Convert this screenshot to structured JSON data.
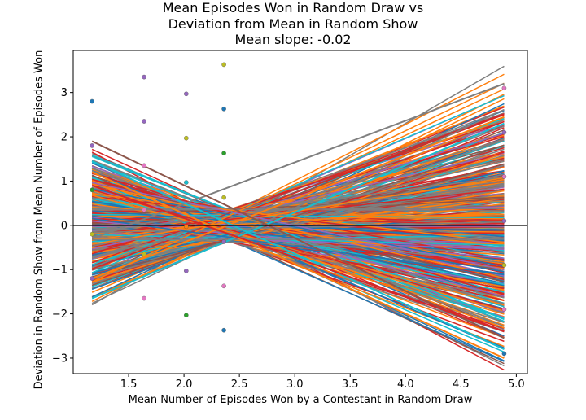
{
  "chart_data": {
    "type": "line",
    "title_lines": [
      "Mean Episodes Won in Random Draw vs",
      "Deviation from Mean in Random Show",
      "Mean slope: -0.02"
    ],
    "xlabel": "Mean Number of Episodes Won by a Contestant in Random Draw",
    "ylabel": "Deviation in Random Show from Mean Number of Episodes Won",
    "xlim": [
      1.0,
      5.1
    ],
    "ylim": [
      -3.35,
      3.95
    ],
    "xticks": [
      1.5,
      2.0,
      2.5,
      3.0,
      3.5,
      4.0,
      4.5,
      5.0
    ],
    "xtick_labels": [
      "1.5",
      "2.0",
      "2.5",
      "3.0",
      "3.5",
      "4.0",
      "4.5",
      "5.0"
    ],
    "yticks": [
      -3,
      -2,
      -1,
      0,
      1,
      2,
      3
    ],
    "ytick_labels": [
      "−3",
      "−2",
      "−1",
      "0",
      "1",
      "2",
      "3"
    ],
    "reference_line_y": 0,
    "mean_slope": -0.02,
    "group_x": [
      1.17,
      1.64,
      2.02,
      2.36,
      4.89
    ],
    "pivot_x": 2.4,
    "palette": [
      "#1f77b4",
      "#ff7f0e",
      "#2ca02c",
      "#d62728",
      "#9467bd",
      "#8c564b",
      "#e377c2",
      "#7f7f7f",
      "#bcbd22",
      "#17becf"
    ],
    "line_count": 520,
    "highlighted_lines": [
      {
        "x": [
          1.17,
          4.89
        ],
        "y": [
          -0.3,
          3.2
        ],
        "color": "#7f7f7f"
      },
      {
        "x": [
          1.17,
          4.89
        ],
        "y": [
          -1.2,
          2.45
        ],
        "color": "#ff7f0e"
      },
      {
        "x": [
          1.17,
          4.89
        ],
        "y": [
          -1.65,
          2.3
        ],
        "color": "#17becf"
      },
      {
        "x": [
          1.17,
          4.89
        ],
        "y": [
          1.9,
          -2.55
        ],
        "color": "#8c564b"
      },
      {
        "x": [
          1.17,
          4.89
        ],
        "y": [
          1.2,
          -3.0
        ],
        "color": "#ff7f0e"
      },
      {
        "x": [
          1.17,
          4.89
        ],
        "y": [
          1.45,
          -2.8
        ],
        "color": "#17becf"
      },
      {
        "x": [
          1.17,
          4.89
        ],
        "y": [
          0.9,
          -2.4
        ],
        "color": "#d62728"
      }
    ],
    "points": [
      {
        "x": 1.17,
        "y": 2.8,
        "color": "#1f77b4"
      },
      {
        "x": 1.17,
        "y": 1.8,
        "color": "#9467bd"
      },
      {
        "x": 1.17,
        "y": 0.8,
        "color": "#2ca02c"
      },
      {
        "x": 1.17,
        "y": -0.2,
        "color": "#bcbd22"
      },
      {
        "x": 1.17,
        "y": -1.2,
        "color": "#9467bd"
      },
      {
        "x": 1.64,
        "y": 3.35,
        "color": "#9467bd"
      },
      {
        "x": 1.64,
        "y": 2.35,
        "color": "#9467bd"
      },
      {
        "x": 1.64,
        "y": 1.35,
        "color": "#e377c2"
      },
      {
        "x": 1.64,
        "y": 0.35,
        "color": "#e377c2"
      },
      {
        "x": 1.64,
        "y": -0.65,
        "color": "#bcbd22"
      },
      {
        "x": 1.64,
        "y": -1.65,
        "color": "#e377c2"
      },
      {
        "x": 2.02,
        "y": 2.97,
        "color": "#9467bd"
      },
      {
        "x": 2.02,
        "y": 1.97,
        "color": "#bcbd22"
      },
      {
        "x": 2.02,
        "y": 0.97,
        "color": "#17becf"
      },
      {
        "x": 2.02,
        "y": -0.03,
        "color": "#ff7f0e"
      },
      {
        "x": 2.02,
        "y": -1.03,
        "color": "#9467bd"
      },
      {
        "x": 2.02,
        "y": -2.03,
        "color": "#2ca02c"
      },
      {
        "x": 2.36,
        "y": 3.63,
        "color": "#bcbd22"
      },
      {
        "x": 2.36,
        "y": 2.63,
        "color": "#1f77b4"
      },
      {
        "x": 2.36,
        "y": 1.63,
        "color": "#2ca02c"
      },
      {
        "x": 2.36,
        "y": 0.63,
        "color": "#bcbd22"
      },
      {
        "x": 2.36,
        "y": -0.37,
        "color": "#9467bd"
      },
      {
        "x": 2.36,
        "y": -1.37,
        "color": "#e377c2"
      },
      {
        "x": 2.36,
        "y": -2.37,
        "color": "#1f77b4"
      },
      {
        "x": 4.89,
        "y": 3.1,
        "color": "#e377c2"
      },
      {
        "x": 4.89,
        "y": 2.1,
        "color": "#9467bd"
      },
      {
        "x": 4.89,
        "y": 1.1,
        "color": "#e377c2"
      },
      {
        "x": 4.89,
        "y": 0.1,
        "color": "#9467bd"
      },
      {
        "x": 4.89,
        "y": -0.9,
        "color": "#bcbd22"
      },
      {
        "x": 4.89,
        "y": -1.9,
        "color": "#e377c2"
      },
      {
        "x": 4.89,
        "y": -2.9,
        "color": "#1f77b4"
      }
    ]
  }
}
